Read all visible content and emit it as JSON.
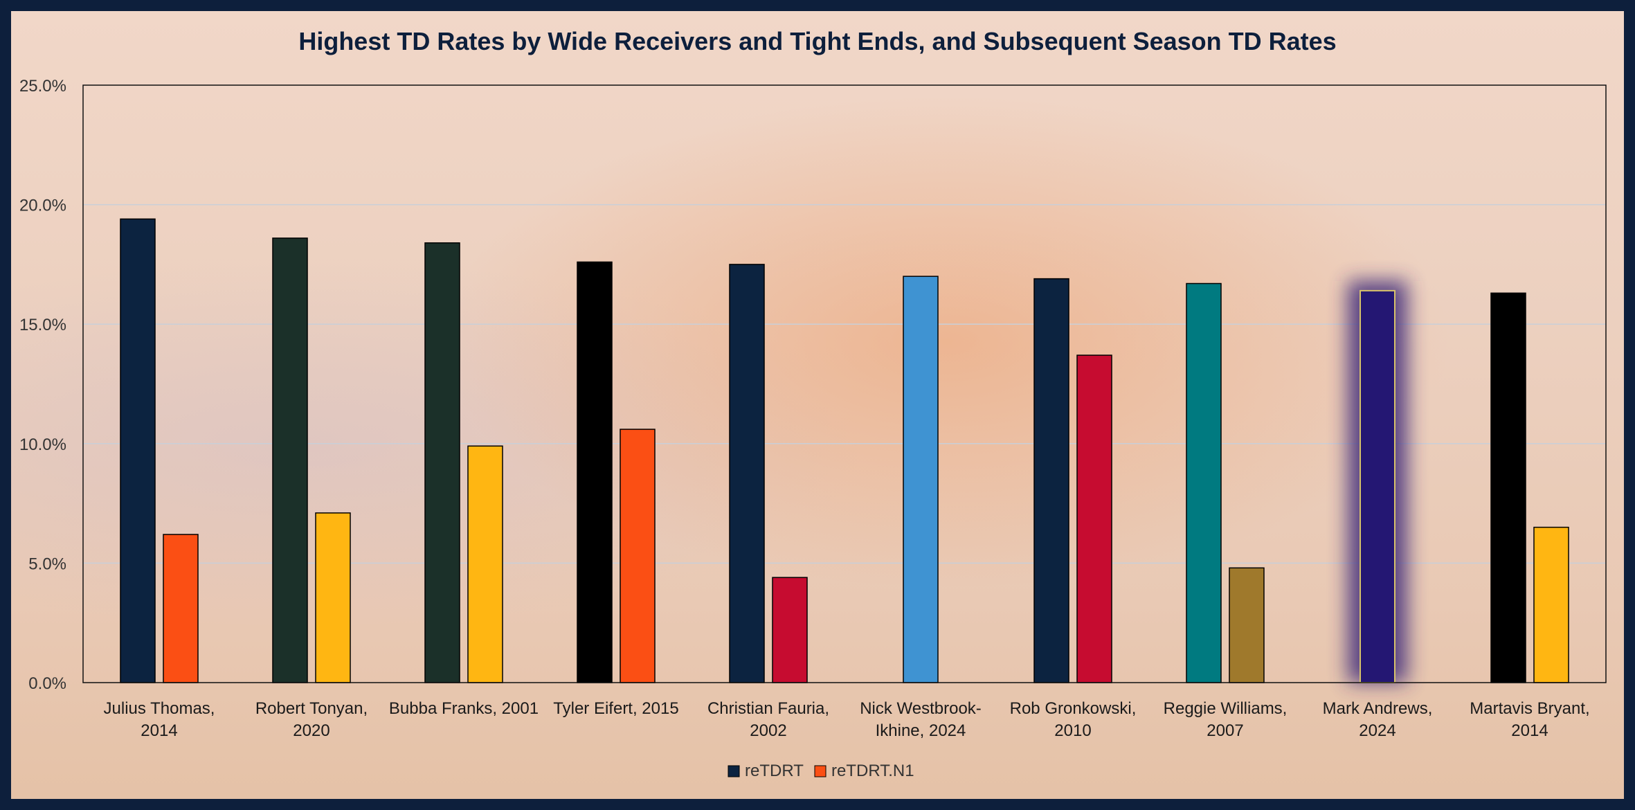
{
  "chart_data": {
    "type": "bar",
    "title": "Highest TD Rates by Wide Receivers and Tight Ends, and Subsequent Season TD Rates",
    "xlabel": "",
    "ylabel": "",
    "ylim": [
      0,
      25
    ],
    "yticks": [
      "0.0%",
      "5.0%",
      "10.0%",
      "15.0%",
      "20.0%",
      "25.0%"
    ],
    "grid": true,
    "legend_position": "bottom",
    "categories": [
      [
        "Julius Thomas,",
        "2014"
      ],
      [
        "Robert Tonyan,",
        "2020"
      ],
      [
        "Bubba Franks, 2001"
      ],
      [
        "Tyler Eifert, 2015"
      ],
      [
        "Christian Fauria,",
        "2002"
      ],
      [
        "Nick Westbrook-",
        "Ikhine, 2024"
      ],
      [
        "Rob Gronkowski,",
        "2010"
      ],
      [
        "Reggie Williams,",
        "2007"
      ],
      [
        "Mark Andrews,",
        "2024"
      ],
      [
        "Martavis Bryant,",
        "2014"
      ]
    ],
    "series": [
      {
        "name": "reTDRT",
        "legend_color": "#0c2340",
        "values": [
          19.4,
          18.6,
          18.4,
          17.6,
          17.5,
          17.0,
          16.9,
          16.7,
          16.4,
          16.3
        ],
        "colors": [
          "#0c2340",
          "#1b3029",
          "#1b3029",
          "#000000",
          "#0c2340",
          "#3f93d2",
          "#0c2340",
          "#007a80",
          "#241773",
          "#000000"
        ]
      },
      {
        "name": "reTDRT.N1",
        "legend_color": "#fb4f14",
        "values": [
          6.2,
          7.1,
          9.9,
          10.6,
          4.4,
          null,
          13.7,
          4.8,
          null,
          6.5
        ],
        "colors": [
          "#fb4f14",
          "#ffb612",
          "#ffb612",
          "#fb4f14",
          "#c60c30",
          null,
          "#c60c30",
          "#9f792c",
          null,
          "#ffb612"
        ]
      }
    ],
    "highlight": {
      "Nick Westbrook-Ikhine, 2024": {
        "glow": "#7fb8ea",
        "border": "#e2231a"
      },
      "Mark Andrews, 2024": {
        "glow": "#3d2a7a",
        "border": "#d8c36a"
      }
    }
  }
}
